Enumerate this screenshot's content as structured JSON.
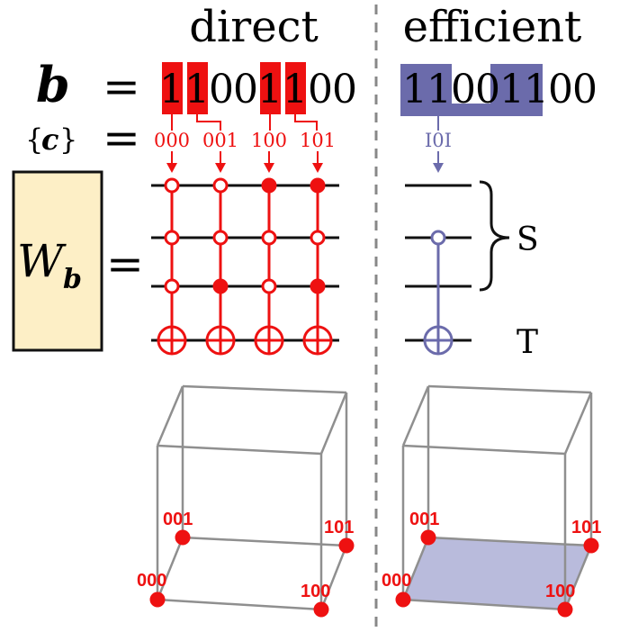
{
  "headings": {
    "left": "direct",
    "right": "efficient"
  },
  "bitstring_row": {
    "symbol": "b",
    "equals": "=",
    "direct_digits": [
      "1",
      "1",
      "0",
      "0",
      "1",
      "1",
      "0",
      "0"
    ],
    "efficient_digits": [
      "1",
      "1",
      "0",
      "0",
      "1",
      "1",
      "0",
      "0"
    ]
  },
  "set_row": {
    "symbol_open": "{",
    "symbol": "c",
    "symbol_close": "}",
    "equals": "=",
    "direct_labels": [
      "000",
      "001",
      "100",
      "101"
    ],
    "efficient_label": "I0I"
  },
  "operator": {
    "script": "W",
    "subscript": "b",
    "equals": "="
  },
  "circuit_labels": {
    "brace_label": "S",
    "target_label": "T"
  },
  "cube_labels": {
    "direct": [
      "001",
      "101",
      "000",
      "100"
    ],
    "efficient": [
      "001",
      "101",
      "000",
      "100"
    ]
  },
  "colors": {
    "red": "#ee1111",
    "blue": "#6b6bab",
    "blue_plane": "#b9bbdc",
    "box_fill": "#fdefc6",
    "divider": "#888888",
    "cube_edge": "#8f8f8f"
  }
}
